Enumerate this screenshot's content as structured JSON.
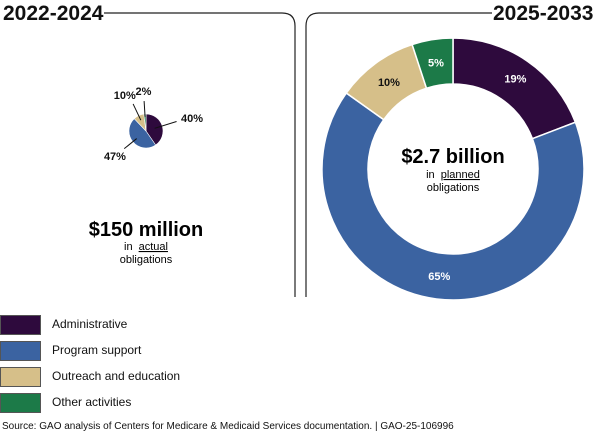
{
  "left_panel": {
    "title": "2022-2024",
    "total_value": "$150 million",
    "total_caption_prefix": "in",
    "total_caption_underlined": "actual",
    "total_caption_suffix": "obligations"
  },
  "right_panel": {
    "title": "2025-2033",
    "total_value": "$2.7 billion",
    "total_caption_prefix": "in",
    "total_caption_underlined": "planned",
    "total_caption_suffix": "obligations"
  },
  "chart_data": [
    {
      "type": "pie",
      "title": "2022-2024",
      "total": "$150 million",
      "categories": [
        "Administrative",
        "Program support",
        "Outreach and education",
        "Other activities"
      ],
      "values": [
        40,
        47,
        10,
        2
      ],
      "labels": [
        "40%",
        "47%",
        "10%",
        "2%"
      ]
    },
    {
      "type": "pie",
      "title": "2025-2033",
      "total": "$2.7 billion",
      "categories": [
        "Administrative",
        "Program support",
        "Outreach and education",
        "Other activities"
      ],
      "values": [
        19,
        65,
        10,
        5
      ],
      "labels": [
        "19%",
        "65%",
        "10%",
        "5%"
      ]
    }
  ],
  "colors": {
    "Administrative": "#2e0a3d",
    "Program support": "#3b63a1",
    "Outreach and education": "#d6bf89",
    "Other activities": "#1c7a48"
  },
  "legend": [
    {
      "label": "Administrative",
      "color": "#2e0a3d"
    },
    {
      "label": "Program support",
      "color": "#3b63a1"
    },
    {
      "label": "Outreach and education",
      "color": "#d6bf89"
    },
    {
      "label": "Other activities",
      "color": "#1c7a48"
    }
  ],
  "source": "Source: GAO analysis of Centers for Medicare & Medicaid Services documentation.  |  GAO-25-106996"
}
